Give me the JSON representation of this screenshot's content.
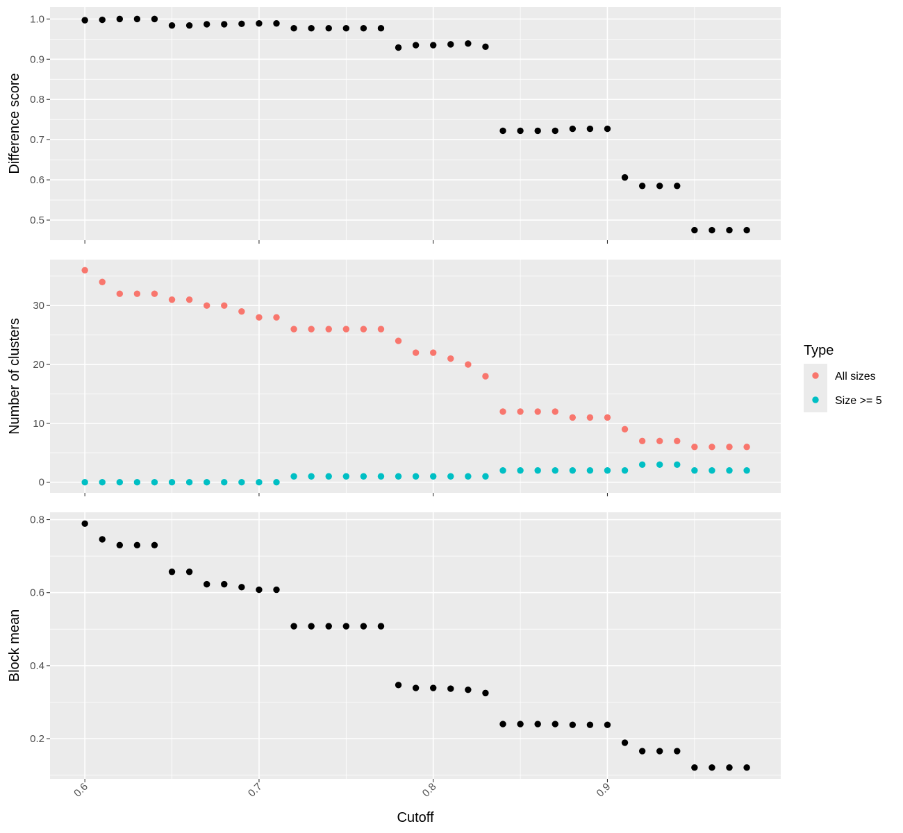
{
  "chart_data": {
    "type": "scatter",
    "xlabel": "Cutoff",
    "x_ticks": [
      0.6,
      0.7,
      0.8,
      0.9
    ],
    "x_tick_labels": [
      "0.6",
      "0.7",
      "0.8",
      "0.9"
    ],
    "xlim": [
      0.58,
      0.9995
    ],
    "x": [
      0.6,
      0.61,
      0.62,
      0.63,
      0.64,
      0.65,
      0.66,
      0.67,
      0.68,
      0.69,
      0.7,
      0.71,
      0.72,
      0.73,
      0.74,
      0.75,
      0.76,
      0.77,
      0.78,
      0.79,
      0.8,
      0.81,
      0.82,
      0.83,
      0.84,
      0.85,
      0.86,
      0.87,
      0.88,
      0.89,
      0.9,
      0.91,
      0.92,
      0.93,
      0.94,
      0.95,
      0.96,
      0.97,
      0.98
    ],
    "grid": true,
    "legend": {
      "title": "Type",
      "position": "right",
      "items": [
        {
          "label": "All sizes",
          "color": "#f8766d"
        },
        {
          "label": "Size >= 5",
          "color": "#00bfc4"
        }
      ]
    },
    "panels": [
      {
        "ylabel": "Difference score",
        "ylim": [
          0.45,
          1.03
        ],
        "y_ticks": [
          0.5,
          0.6,
          0.7,
          0.8,
          0.9,
          1.0
        ],
        "y_tick_labels": [
          "0.5",
          "0.6",
          "0.7",
          "0.8",
          "0.9",
          "1.0"
        ],
        "series": [
          {
            "color": "#000000",
            "values": [
              0.997,
              0.998,
              1.0,
              1.0,
              1.0,
              0.984,
              0.984,
              0.987,
              0.987,
              0.988,
              0.989,
              0.989,
              0.977,
              0.977,
              0.977,
              0.977,
              0.977,
              0.977,
              0.929,
              0.935,
              0.935,
              0.937,
              0.939,
              0.931,
              0.722,
              0.722,
              0.722,
              0.722,
              0.727,
              0.727,
              0.727,
              0.606,
              0.585,
              0.585,
              0.585,
              0.475,
              0.475,
              0.475,
              0.475
            ]
          }
        ]
      },
      {
        "ylabel": "Number of clusters",
        "ylim": [
          -1.8,
          37.8
        ],
        "y_ticks": [
          0,
          10,
          20,
          30
        ],
        "y_tick_labels": [
          "0",
          "10",
          "20",
          "30"
        ],
        "series": [
          {
            "name": "All sizes",
            "color": "#f8766d",
            "values": [
              36,
              34,
              32,
              32,
              32,
              31,
              31,
              30,
              30,
              29,
              28,
              28,
              26,
              26,
              26,
              26,
              26,
              26,
              24,
              22,
              22,
              21,
              20,
              18,
              12,
              12,
              12,
              12,
              11,
              11,
              11,
              9,
              7,
              7,
              7,
              6,
              6,
              6,
              6
            ]
          },
          {
            "name": "Size >= 5",
            "color": "#00bfc4",
            "values": [
              0,
              0,
              0,
              0,
              0,
              0,
              0,
              0,
              0,
              0,
              0,
              0,
              1,
              1,
              1,
              1,
              1,
              1,
              1,
              1,
              1,
              1,
              1,
              1,
              2,
              2,
              2,
              2,
              2,
              2,
              2,
              2,
              3,
              3,
              3,
              2,
              2,
              2,
              2
            ]
          }
        ]
      },
      {
        "ylabel": "Block mean",
        "ylim": [
          0.09,
          0.82
        ],
        "y_ticks": [
          0.2,
          0.4,
          0.6,
          0.8
        ],
        "y_tick_labels": [
          "0.2",
          "0.4",
          "0.6",
          "0.8"
        ],
        "series": [
          {
            "color": "#000000",
            "values": [
              0.789,
              0.746,
              0.73,
              0.73,
              0.73,
              0.657,
              0.657,
              0.623,
              0.623,
              0.615,
              0.608,
              0.608,
              0.508,
              0.508,
              0.508,
              0.508,
              0.508,
              0.508,
              0.347,
              0.339,
              0.339,
              0.337,
              0.334,
              0.325,
              0.24,
              0.24,
              0.24,
              0.24,
              0.238,
              0.238,
              0.238,
              0.189,
              0.166,
              0.166,
              0.166,
              0.121,
              0.121,
              0.121,
              0.121
            ]
          }
        ]
      }
    ]
  }
}
